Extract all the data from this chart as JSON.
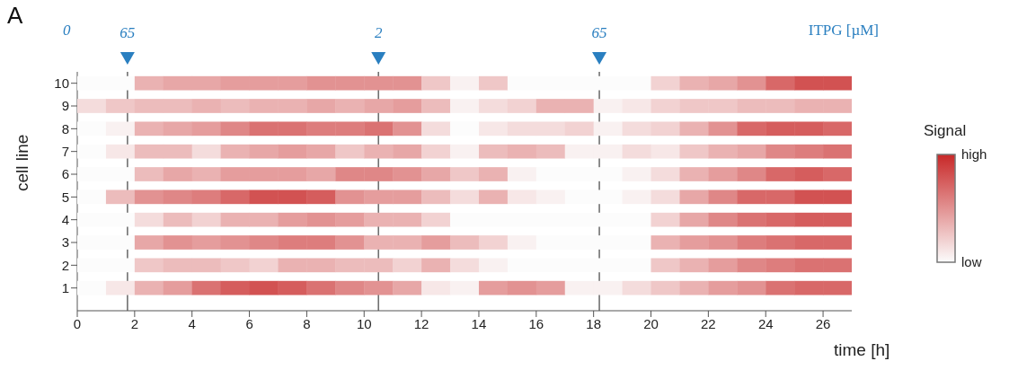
{
  "chart_data": {
    "type": "heatmap",
    "title": "A",
    "xlabel": "time [h]",
    "ylabel": "cell line",
    "clabel": "Signal",
    "annotations": [
      "0",
      "65",
      "2",
      "65",
      "ITPG [µM]"
    ],
    "x": [
      0.5,
      1.5,
      2.5,
      3.5,
      4.5,
      5.5,
      6.5,
      7.5,
      8.5,
      9.5,
      10.5,
      11.5,
      12.5,
      13.5,
      14.5,
      15.5,
      16.5,
      17.5,
      18.5,
      19.5,
      20.5,
      21.5,
      22.5,
      23.5,
      24.5,
      25.5,
      26.5
    ],
    "xlim": [
      0,
      27
    ],
    "xticks": [
      0,
      2,
      4,
      6,
      8,
      10,
      12,
      14,
      16,
      18,
      20,
      22,
      24,
      26
    ],
    "y_categories": [
      "10",
      "9",
      "8",
      "7",
      "6",
      "5",
      "4",
      "3",
      "2",
      "1"
    ],
    "cells": [
      [
        0.0,
        0.0,
        0.35,
        0.4,
        0.4,
        0.45,
        0.45,
        0.45,
        0.5,
        0.5,
        0.5,
        0.5,
        0.25,
        0.05,
        0.25,
        0.0,
        0.0,
        0.0,
        0.0,
        0.0,
        0.2,
        0.35,
        0.4,
        0.5,
        0.7,
        0.8,
        0.8
      ],
      [
        0.15,
        0.25,
        0.3,
        0.3,
        0.35,
        0.3,
        0.35,
        0.35,
        0.4,
        0.35,
        0.4,
        0.45,
        0.3,
        0.05,
        0.15,
        0.2,
        0.35,
        0.35,
        0.05,
        0.1,
        0.2,
        0.25,
        0.25,
        0.3,
        0.3,
        0.35,
        0.35
      ],
      [
        0.0,
        0.05,
        0.35,
        0.4,
        0.45,
        0.55,
        0.65,
        0.65,
        0.6,
        0.6,
        0.65,
        0.5,
        0.15,
        0.0,
        0.1,
        0.15,
        0.15,
        0.2,
        0.05,
        0.15,
        0.2,
        0.35,
        0.5,
        0.7,
        0.75,
        0.75,
        0.7
      ],
      [
        0.0,
        0.1,
        0.3,
        0.3,
        0.15,
        0.35,
        0.4,
        0.45,
        0.4,
        0.25,
        0.35,
        0.4,
        0.2,
        0.05,
        0.3,
        0.35,
        0.3,
        0.05,
        0.05,
        0.15,
        0.1,
        0.25,
        0.35,
        0.4,
        0.55,
        0.6,
        0.65
      ],
      [
        0.0,
        0.0,
        0.3,
        0.4,
        0.35,
        0.45,
        0.45,
        0.45,
        0.4,
        0.55,
        0.55,
        0.5,
        0.4,
        0.25,
        0.35,
        0.05,
        0.0,
        0.0,
        0.0,
        0.05,
        0.15,
        0.35,
        0.45,
        0.55,
        0.7,
        0.75,
        0.7
      ],
      [
        0.0,
        0.3,
        0.5,
        0.55,
        0.6,
        0.7,
        0.8,
        0.8,
        0.75,
        0.5,
        0.45,
        0.45,
        0.3,
        0.15,
        0.35,
        0.1,
        0.05,
        0.0,
        0.0,
        0.05,
        0.15,
        0.4,
        0.55,
        0.7,
        0.7,
        0.8,
        0.8
      ],
      [
        0.0,
        0.0,
        0.15,
        0.3,
        0.2,
        0.35,
        0.35,
        0.45,
        0.5,
        0.45,
        0.35,
        0.35,
        0.2,
        0.0,
        0.0,
        0.0,
        0.0,
        0.0,
        0.0,
        0.0,
        0.2,
        0.4,
        0.55,
        0.65,
        0.7,
        0.75,
        0.75
      ],
      [
        0.0,
        0.0,
        0.4,
        0.5,
        0.45,
        0.5,
        0.55,
        0.6,
        0.6,
        0.5,
        0.35,
        0.35,
        0.45,
        0.3,
        0.2,
        0.05,
        0.0,
        0.0,
        0.0,
        0.0,
        0.35,
        0.45,
        0.5,
        0.6,
        0.65,
        0.7,
        0.7
      ],
      [
        0.0,
        0.0,
        0.25,
        0.3,
        0.3,
        0.25,
        0.2,
        0.35,
        0.35,
        0.3,
        0.3,
        0.2,
        0.35,
        0.15,
        0.05,
        0.0,
        0.0,
        0.0,
        0.0,
        0.0,
        0.25,
        0.35,
        0.45,
        0.55,
        0.6,
        0.65,
        0.65
      ],
      [
        0.0,
        0.1,
        0.35,
        0.45,
        0.65,
        0.75,
        0.8,
        0.75,
        0.65,
        0.55,
        0.5,
        0.4,
        0.1,
        0.05,
        0.45,
        0.5,
        0.45,
        0.05,
        0.05,
        0.15,
        0.25,
        0.35,
        0.45,
        0.5,
        0.65,
        0.7,
        0.7
      ]
    ],
    "clim": [
      0,
      1
    ],
    "cticks": [
      {
        "value": 0,
        "label": "low"
      },
      {
        "value": 1,
        "label": "high"
      }
    ],
    "ref_lines": [
      {
        "axis": "x",
        "value": 1.75,
        "color": "#707070"
      },
      {
        "axis": "x",
        "value": 10.5,
        "color": "#707070"
      },
      {
        "axis": "x",
        "value": 18.2,
        "color": "#707070"
      }
    ],
    "grid": false
  }
}
